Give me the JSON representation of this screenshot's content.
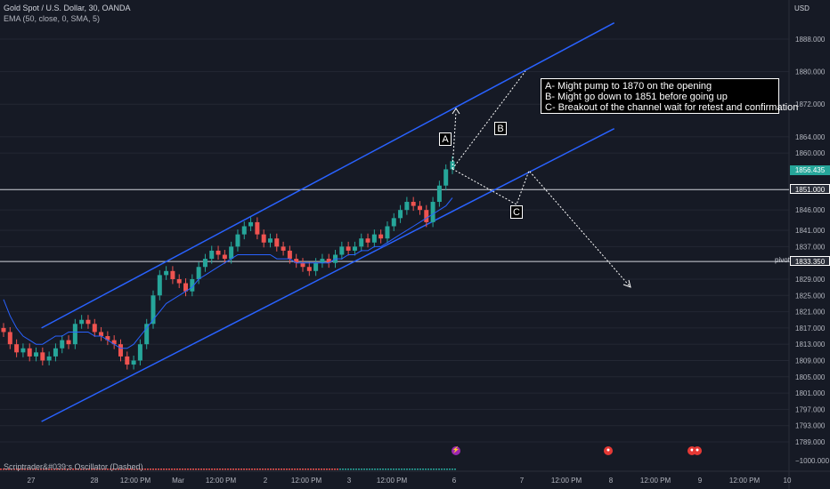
{
  "header": {
    "title": "Gold Spot / U.S. Dollar, 30, OANDA",
    "indicator": "EMA (50, close, 0, SMA, 5)",
    "oscillator": "Scriptrader&#039;s Oscillator (Dashed)",
    "currency": "USD"
  },
  "annotation": {
    "lines": [
      "A- Might pump to  1870 on the opening",
      "B- Might go down to 1851 before going up",
      "C- Breakout of the channel wait for retest and confirmation"
    ],
    "labels": {
      "a": "A",
      "b": "B",
      "c": "C"
    },
    "pivot_label": "pivot"
  },
  "price_tags": {
    "last": "1856.435",
    "level1": "1851.000",
    "level2": "1833.350",
    "last_color": "#26a69a"
  },
  "chart_data": {
    "type": "candlestick",
    "symbol": "Gold Spot / U.S. Dollar",
    "timeframe": "30",
    "ylim": [
      1787,
      1892
    ],
    "y_ticks": [
      1888,
      1880,
      1872,
      1864,
      1860,
      1856.435,
      1851,
      1846,
      1841,
      1837,
      1833.35,
      1829,
      1825,
      1821,
      1817,
      1813,
      1809,
      1805,
      1801,
      1797,
      1793,
      1789
    ],
    "y_tick_labels": [
      "1888.000",
      "1880.000",
      "1872.000",
      "1864.000",
      "1860.000",
      "1856.435",
      "1851.000",
      "1846.000",
      "1841.000",
      "1837.000",
      "1833.350",
      "1829.000",
      "1825.000",
      "1821.000",
      "1817.000",
      "1813.000",
      "1809.000",
      "1805.000",
      "1801.000",
      "1797.000",
      "1793.000",
      "1789.000"
    ],
    "x_tick_labels": [
      "27",
      "28",
      "12:00 PM",
      "Mar",
      "12:00 PM",
      "2",
      "12:00 PM",
      "3",
      "12:00 PM",
      "6",
      "7",
      "12:00 PM",
      "8",
      "12:00 PM",
      "9",
      "12:00 PM",
      "10"
    ],
    "oscillator_tick": "1000.000",
    "horizontal_levels": [
      1851.0,
      1833.35
    ],
    "channel": {
      "upper": [
        [
          0.05,
          1817
        ],
        [
          0.74,
          1892
        ]
      ],
      "lower": [
        [
          0.05,
          1794
        ],
        [
          0.74,
          1866
        ]
      ]
    },
    "close_path": [
      1816,
      1813,
      1811,
      1812,
      1810,
      1811,
      1809,
      1810,
      1812,
      1814,
      1813,
      1818,
      1819,
      1818,
      1816,
      1815,
      1814,
      1813,
      1810,
      1808,
      1809,
      1813,
      1818,
      1825,
      1830,
      1831,
      1829,
      1828,
      1826,
      1829,
      1832,
      1834,
      1836,
      1835,
      1834,
      1837,
      1840,
      1842,
      1843,
      1840,
      1838,
      1839,
      1837,
      1836,
      1834,
      1833,
      1832,
      1831,
      1833,
      1834,
      1833,
      1835,
      1837,
      1836,
      1837,
      1839,
      1838,
      1840,
      1839,
      1842,
      1844,
      1846,
      1848,
      1847,
      1846,
      1843,
      1848,
      1852,
      1856,
      1858
    ],
    "ema_path": [
      1824,
      1820,
      1817,
      1815,
      1814,
      1813,
      1813,
      1814,
      1815,
      1815,
      1816,
      1816,
      1816,
      1816,
      1815,
      1815,
      1814,
      1813,
      1812,
      1812,
      1813,
      1815,
      1817,
      1819,
      1821,
      1823,
      1824,
      1825,
      1826,
      1827,
      1829,
      1830,
      1831,
      1832,
      1833,
      1834,
      1835,
      1835,
      1835,
      1835,
      1835,
      1835,
      1834,
      1834,
      1834,
      1833,
      1833,
      1833,
      1833,
      1833,
      1833,
      1834,
      1834,
      1835,
      1835,
      1836,
      1836,
      1837,
      1837,
      1838,
      1839,
      1840,
      1841,
      1842,
      1843,
      1844,
      1845,
      1846,
      1847,
      1849
    ]
  }
}
